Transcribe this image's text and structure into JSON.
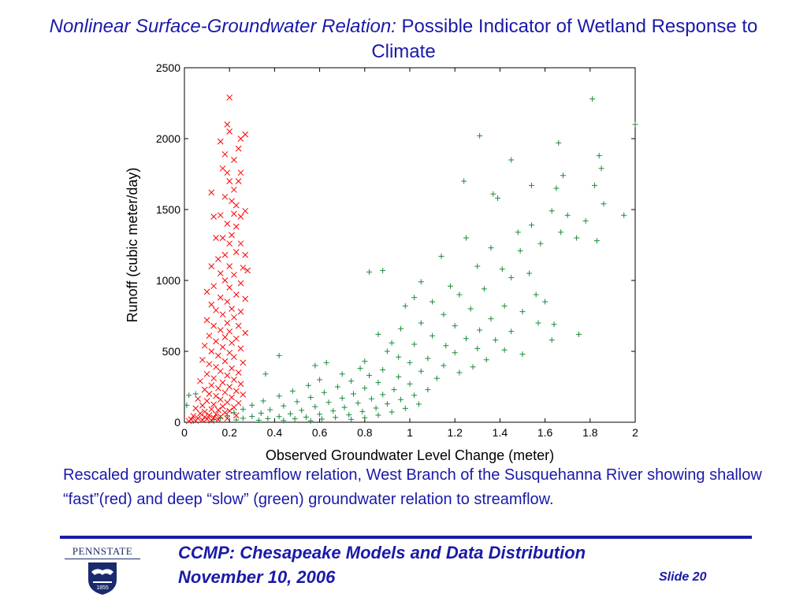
{
  "slide": {
    "title_italic": "Nonlinear Surface-Groundwater Relation:",
    "title_rest": "Possible Indicator of Wetland Response to Climate",
    "caption_before": "Rescaled groundwater streamflow relation, West Branch of the Susquehanna River showing shallow ",
    "fast_word": "“fast”",
    "caption_middle": "(red) and deep ",
    "slow_word": "“slow”",
    "caption_after": " (green) groundwater relation to streamflow.",
    "footer_title": "CCMP: Chesapeake Models and Data Distribution",
    "footer_date": "November 10, 2006",
    "slide_label": "Slide 20",
    "logo_text": "PENNSTATE",
    "logo_year": "1855"
  },
  "colors": {
    "accent_blue": "#1a1aa8",
    "fast_red": "#ff0000",
    "slow_green": "#1a8a3a"
  },
  "chart_data": {
    "type": "scatter",
    "title": "",
    "xlabel": "Observed Groundwater Level Change (meter)",
    "ylabel": "Runoff (cubic meter/day)",
    "xlim": [
      0,
      2
    ],
    "ylim": [
      0,
      2500
    ],
    "x_ticks": [
      "0",
      "0.2",
      "0.4",
      "0.6",
      "0.8",
      "1",
      "1.2",
      "1.4",
      "1.6",
      "1.8",
      "2"
    ],
    "y_ticks": [
      "0",
      "500",
      "1000",
      "1500",
      "2000",
      "2500"
    ],
    "grid": false,
    "legend": "none",
    "series": [
      {
        "marker": "x",
        "color": "#ff0000",
        "points": [
          [
            0.2,
            2290
          ],
          [
            0.19,
            2100
          ],
          [
            0.2,
            2050
          ],
          [
            0.16,
            1980
          ],
          [
            0.27,
            2030
          ],
          [
            0.25,
            2000
          ],
          [
            0.24,
            1930
          ],
          [
            0.18,
            1890
          ],
          [
            0.22,
            1850
          ],
          [
            0.17,
            1790
          ],
          [
            0.19,
            1760
          ],
          [
            0.25,
            1760
          ],
          [
            0.2,
            1700
          ],
          [
            0.24,
            1700
          ],
          [
            0.12,
            1620
          ],
          [
            0.22,
            1640
          ],
          [
            0.18,
            1590
          ],
          [
            0.21,
            1560
          ],
          [
            0.23,
            1530
          ],
          [
            0.13,
            1450
          ],
          [
            0.16,
            1460
          ],
          [
            0.22,
            1470
          ],
          [
            0.27,
            1490
          ],
          [
            0.25,
            1450
          ],
          [
            0.19,
            1400
          ],
          [
            0.23,
            1380
          ],
          [
            0.14,
            1300
          ],
          [
            0.17,
            1300
          ],
          [
            0.21,
            1320
          ],
          [
            0.2,
            1260
          ],
          [
            0.25,
            1260
          ],
          [
            0.18,
            1180
          ],
          [
            0.23,
            1200
          ],
          [
            0.27,
            1180
          ],
          [
            0.15,
            1150
          ],
          [
            0.2,
            1100
          ],
          [
            0.12,
            1100
          ],
          [
            0.26,
            1090
          ],
          [
            0.28,
            1070
          ],
          [
            0.16,
            1050
          ],
          [
            0.22,
            1040
          ],
          [
            0.18,
            1000
          ],
          [
            0.25,
            980
          ],
          [
            0.13,
            960
          ],
          [
            0.2,
            950
          ],
          [
            0.1,
            920
          ],
          [
            0.23,
            900
          ],
          [
            0.16,
            880
          ],
          [
            0.27,
            870
          ],
          [
            0.19,
            850
          ],
          [
            0.12,
            830
          ],
          [
            0.21,
            800
          ],
          [
            0.14,
            790
          ],
          [
            0.25,
            780
          ],
          [
            0.17,
            760
          ],
          [
            0.22,
            740
          ],
          [
            0.1,
            720
          ],
          [
            0.19,
            700
          ],
          [
            0.13,
            680
          ],
          [
            0.24,
            680
          ],
          [
            0.16,
            650
          ],
          [
            0.2,
            640
          ],
          [
            0.27,
            630
          ],
          [
            0.11,
            610
          ],
          [
            0.18,
            600
          ],
          [
            0.23,
            590
          ],
          [
            0.14,
            570
          ],
          [
            0.21,
            560
          ],
          [
            0.09,
            540
          ],
          [
            0.17,
            530
          ],
          [
            0.25,
            520
          ],
          [
            0.12,
            500
          ],
          [
            0.2,
            490
          ],
          [
            0.15,
            470
          ],
          [
            0.22,
            460
          ],
          [
            0.08,
            440
          ],
          [
            0.18,
            430
          ],
          [
            0.26,
            420
          ],
          [
            0.11,
            410
          ],
          [
            0.14,
            390
          ],
          [
            0.21,
            380
          ],
          [
            0.16,
            360
          ],
          [
            0.24,
            350
          ],
          [
            0.1,
            340
          ],
          [
            0.19,
            330
          ],
          [
            0.13,
            310
          ],
          [
            0.22,
            300
          ],
          [
            0.07,
            290
          ],
          [
            0.17,
            280
          ],
          [
            0.25,
            270
          ],
          [
            0.12,
            260
          ],
          [
            0.2,
            250
          ],
          [
            0.15,
            240
          ],
          [
            0.09,
            230
          ],
          [
            0.23,
            220
          ],
          [
            0.18,
            210
          ],
          [
            0.11,
            200
          ],
          [
            0.26,
            195
          ],
          [
            0.14,
            185
          ],
          [
            0.21,
            175
          ],
          [
            0.06,
            165
          ],
          [
            0.16,
            160
          ],
          [
            0.1,
            150
          ],
          [
            0.19,
            140
          ],
          [
            0.24,
            135
          ],
          [
            0.13,
            125
          ],
          [
            0.08,
            118
          ],
          [
            0.17,
            112
          ],
          [
            0.22,
            105
          ],
          [
            0.05,
            98
          ],
          [
            0.12,
            92
          ],
          [
            0.15,
            86
          ],
          [
            0.2,
            80
          ],
          [
            0.09,
            74
          ],
          [
            0.18,
            68
          ],
          [
            0.07,
            62
          ],
          [
            0.14,
            56
          ],
          [
            0.11,
            50
          ],
          [
            0.23,
            48
          ],
          [
            0.04,
            44
          ],
          [
            0.16,
            40
          ],
          [
            0.09,
            36
          ],
          [
            0.13,
            32
          ],
          [
            0.06,
            28
          ],
          [
            0.19,
            26
          ],
          [
            0.1,
            22
          ],
          [
            0.03,
            20
          ],
          [
            0.15,
            18
          ],
          [
            0.08,
            15
          ],
          [
            0.12,
            12
          ],
          [
            0.05,
            10
          ],
          [
            0.02,
            8
          ]
        ]
      },
      {
        "marker": "+",
        "color": "#1a8a3a",
        "points": [
          [
            2.0,
            2100
          ],
          [
            1.81,
            2280
          ],
          [
            1.84,
            1880
          ],
          [
            1.85,
            1790
          ],
          [
            1.66,
            1970
          ],
          [
            1.31,
            2020
          ],
          [
            1.45,
            1850
          ],
          [
            1.68,
            1740
          ],
          [
            1.82,
            1670
          ],
          [
            1.65,
            1650
          ],
          [
            1.54,
            1670
          ],
          [
            1.37,
            1610
          ],
          [
            1.86,
            1540
          ],
          [
            1.39,
            1580
          ],
          [
            1.24,
            1700
          ],
          [
            1.95,
            1460
          ],
          [
            1.7,
            1460
          ],
          [
            1.63,
            1490
          ],
          [
            1.78,
            1420
          ],
          [
            1.54,
            1390
          ],
          [
            1.48,
            1340
          ],
          [
            1.67,
            1340
          ],
          [
            1.74,
            1300
          ],
          [
            1.83,
            1280
          ],
          [
            1.58,
            1260
          ],
          [
            1.49,
            1210
          ],
          [
            1.36,
            1230
          ],
          [
            1.25,
            1300
          ],
          [
            1.14,
            1170
          ],
          [
            1.3,
            1100
          ],
          [
            1.41,
            1080
          ],
          [
            1.53,
            1050
          ],
          [
            0.82,
            1060
          ],
          [
            0.88,
            1070
          ],
          [
            1.05,
            990
          ],
          [
            1.18,
            960
          ],
          [
            1.45,
            1020
          ],
          [
            1.33,
            940
          ],
          [
            1.56,
            900
          ],
          [
            1.22,
            900
          ],
          [
            1.02,
            880
          ],
          [
            1.6,
            850
          ],
          [
            1.1,
            850
          ],
          [
            1.42,
            820
          ],
          [
            1.27,
            800
          ],
          [
            1.5,
            780
          ],
          [
            0.98,
            820
          ],
          [
            1.15,
            760
          ],
          [
            1.36,
            730
          ],
          [
            1.57,
            700
          ],
          [
            1.64,
            690
          ],
          [
            1.05,
            700
          ],
          [
            1.2,
            680
          ],
          [
            0.96,
            660
          ],
          [
            1.31,
            650
          ],
          [
            1.45,
            640
          ],
          [
            1.75,
            620
          ],
          [
            0.86,
            620
          ],
          [
            1.1,
            610
          ],
          [
            1.25,
            590
          ],
          [
            1.38,
            580
          ],
          [
            1.63,
            580
          ],
          [
            0.92,
            560
          ],
          [
            1.02,
            550
          ],
          [
            1.16,
            540
          ],
          [
            1.3,
            520
          ],
          [
            1.42,
            510
          ],
          [
            0.9,
            500
          ],
          [
            1.2,
            490
          ],
          [
            1.5,
            480
          ],
          [
            0.42,
            470
          ],
          [
            0.95,
            460
          ],
          [
            1.08,
            450
          ],
          [
            1.34,
            440
          ],
          [
            0.8,
            430
          ],
          [
            0.63,
            420
          ],
          [
            0.58,
            400
          ],
          [
            1.0,
            420
          ],
          [
            1.15,
            400
          ],
          [
            1.28,
            390
          ],
          [
            0.78,
            380
          ],
          [
            0.88,
            370
          ],
          [
            1.05,
            360
          ],
          [
            1.22,
            350
          ],
          [
            0.36,
            340
          ],
          [
            0.7,
            340
          ],
          [
            0.82,
            330
          ],
          [
            0.95,
            320
          ],
          [
            1.12,
            310
          ],
          [
            0.6,
            300
          ],
          [
            0.74,
            290
          ],
          [
            0.86,
            280
          ],
          [
            1.0,
            270
          ],
          [
            0.55,
            260
          ],
          [
            0.68,
            250
          ],
          [
            0.8,
            240
          ],
          [
            0.93,
            230
          ],
          [
            1.08,
            230
          ],
          [
            0.48,
            220
          ],
          [
            0.62,
            210
          ],
          [
            0.75,
            200
          ],
          [
            0.88,
            195
          ],
          [
            1.02,
            190
          ],
          [
            0.42,
            185
          ],
          [
            0.56,
            175
          ],
          [
            0.7,
            170
          ],
          [
            0.83,
            165
          ],
          [
            0.96,
            160
          ],
          [
            0.35,
            150
          ],
          [
            0.5,
            145
          ],
          [
            0.64,
            140
          ],
          [
            0.77,
            135
          ],
          [
            0.9,
            130
          ],
          [
            1.04,
            128
          ],
          [
            0.3,
            120
          ],
          [
            0.44,
            115
          ],
          [
            0.58,
            110
          ],
          [
            0.71,
            105
          ],
          [
            0.85,
            100
          ],
          [
            0.98,
            98
          ],
          [
            0.26,
            92
          ],
          [
            0.38,
            88
          ],
          [
            0.52,
            84
          ],
          [
            0.66,
            80
          ],
          [
            0.79,
            76
          ],
          [
            0.92,
            72
          ],
          [
            0.22,
            68
          ],
          [
            0.34,
            64
          ],
          [
            0.47,
            60
          ],
          [
            0.6,
            56
          ],
          [
            0.73,
            52
          ],
          [
            0.86,
            50
          ],
          [
            0.19,
            46
          ],
          [
            0.3,
            42
          ],
          [
            0.42,
            40
          ],
          [
            0.54,
            36
          ],
          [
            0.67,
            34
          ],
          [
            0.8,
            32
          ],
          [
            0.16,
            30
          ],
          [
            0.26,
            28
          ],
          [
            0.37,
            26
          ],
          [
            0.49,
            24
          ],
          [
            0.61,
            22
          ],
          [
            0.74,
            20
          ],
          [
            0.13,
            18
          ],
          [
            0.23,
            16
          ],
          [
            0.33,
            14
          ],
          [
            0.44,
            12
          ],
          [
            0.56,
            10
          ],
          [
            0.02,
            190
          ],
          [
            0.05,
            200
          ],
          [
            0.01,
            120
          ]
        ]
      }
    ]
  }
}
